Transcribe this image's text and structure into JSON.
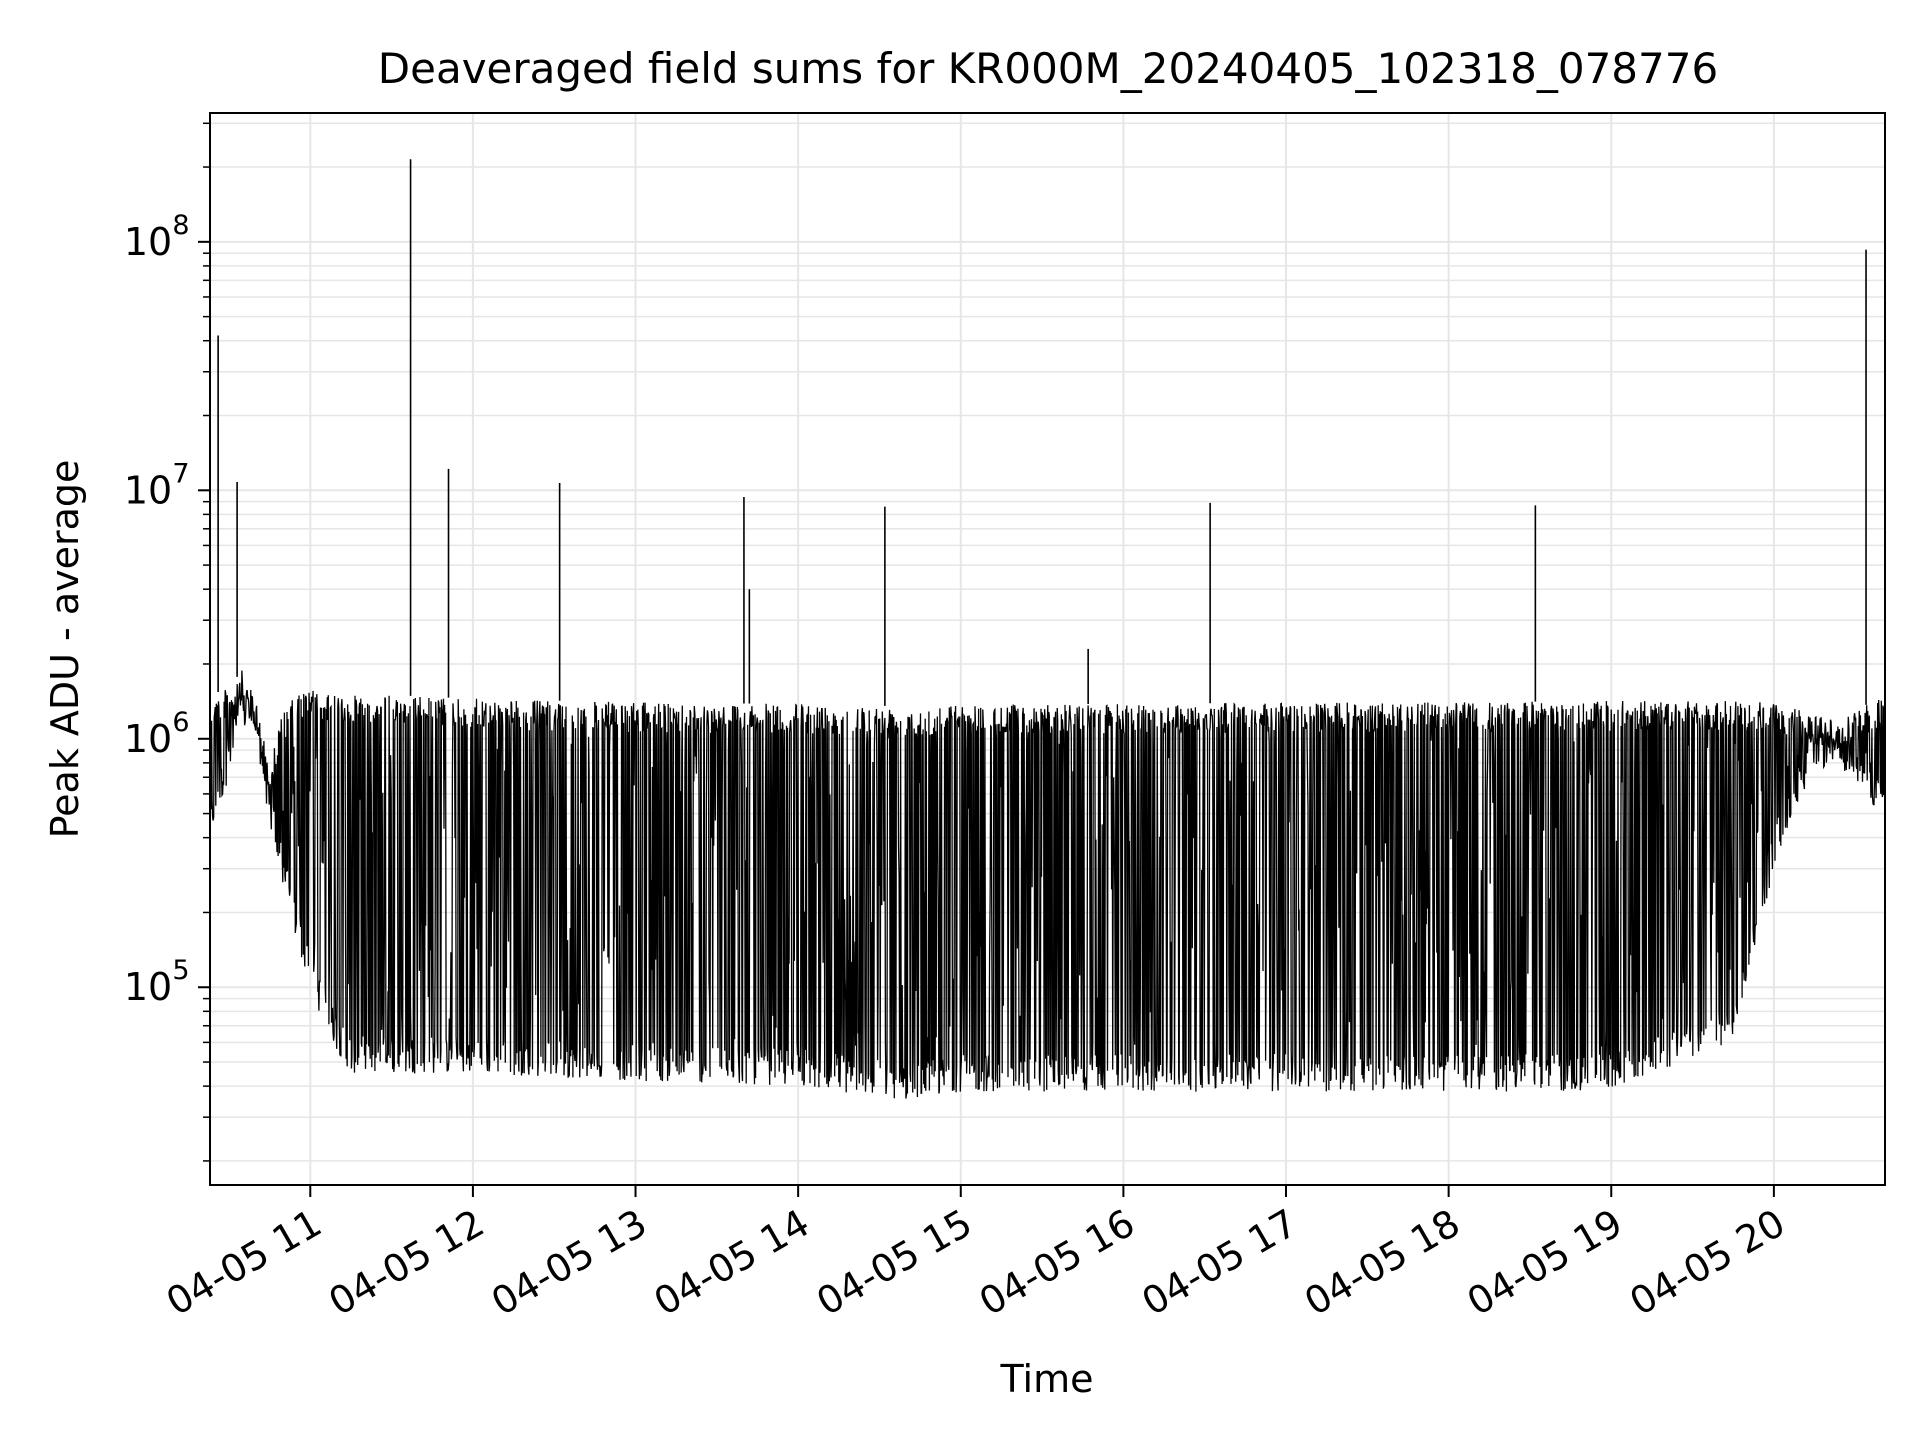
{
  "chart_data": {
    "type": "line",
    "title": "Deaveraged field sums for KR000M_20240405_102318_078776",
    "xlabel": "Time",
    "ylabel": "Peak ADU - average",
    "yscale": "log",
    "ylim": [
      16000,
      330000000
    ],
    "xlim": [
      "2024-04-05 10:23",
      "2024-04-05 20:41"
    ],
    "x_ticks": [
      "04-05 11",
      "04-05 12",
      "04-05 13",
      "04-05 14",
      "04-05 15",
      "04-05 16",
      "04-05 17",
      "04-05 18",
      "04-05 19",
      "04-05 20"
    ],
    "x_tick_times": [
      "2024-04-05 11:00",
      "2024-04-05 12:00",
      "2024-04-05 13:00",
      "2024-04-05 14:00",
      "2024-04-05 15:00",
      "2024-04-05 16:00",
      "2024-04-05 17:00",
      "2024-04-05 18:00",
      "2024-04-05 19:00",
      "2024-04-05 20:00"
    ],
    "y_ticks": [
      {
        "value": 100000,
        "base": "10",
        "exp": "5"
      },
      {
        "value": 1000000,
        "base": "10",
        "exp": "6"
      },
      {
        "value": 10000000,
        "base": "10",
        "exp": "7"
      },
      {
        "value": 100000000,
        "base": "10",
        "exp": "8"
      }
    ],
    "grid": true,
    "line_color": "#000000",
    "grid_color": "#e6e6e6",
    "series": [
      {
        "envelope": {
          "note_units": "minute marks",
          "x": [
            "2024-04-05 10:23",
            "2024-04-05 10:30",
            "2024-04-05 10:35",
            "2024-04-05 10:40",
            "2024-04-05 10:45",
            "2024-04-05 10:50",
            "2024-04-05 10:55",
            "2024-04-05 11:00",
            "2024-04-05 11:05",
            "2024-04-05 11:10",
            "2024-04-05 11:15",
            "2024-04-05 11:30",
            "2024-04-05 12:00",
            "2024-04-05 13:00",
            "2024-04-05 14:00",
            "2024-04-05 14:40",
            "2024-04-05 15:00",
            "2024-04-05 16:00",
            "2024-04-05 17:00",
            "2024-04-05 18:00",
            "2024-04-05 19:00",
            "2024-04-05 19:45",
            "2024-04-05 20:00",
            "2024-04-05 20:10",
            "2024-04-05 20:20",
            "2024-04-05 20:30",
            "2024-04-05 20:41"
          ],
          "high": [
            1500000,
            1600000,
            1900000,
            1400000,
            800000,
            1300000,
            1500000,
            1600000,
            1500000,
            1500000,
            1500000,
            1500000,
            1450000,
            1400000,
            1380000,
            1350000,
            1380000,
            1380000,
            1400000,
            1400000,
            1420000,
            1420000,
            1400000,
            1300000,
            1200000,
            1300000,
            1500000
          ],
          "low": [
            400000,
            700000,
            1100000,
            1000000,
            450000,
            250000,
            150000,
            100000,
            70000,
            55000,
            45000,
            45000,
            45000,
            42000,
            40000,
            35000,
            38000,
            38000,
            38000,
            38000,
            38000,
            60000,
            300000,
            600000,
            800000,
            700000,
            450000
          ]
        },
        "spikes": [
          {
            "x": "2024-04-05 10:26",
            "y": 42000000
          },
          {
            "x": "2024-04-05 10:33",
            "y": 10800000
          },
          {
            "x": "2024-04-05 11:37",
            "y": 215000000
          },
          {
            "x": "2024-04-05 11:51",
            "y": 12200000
          },
          {
            "x": "2024-04-05 12:32",
            "y": 10700000
          },
          {
            "x": "2024-04-05 13:40",
            "y": 9400000
          },
          {
            "x": "2024-04-05 13:42",
            "y": 4000000
          },
          {
            "x": "2024-04-05 14:32",
            "y": 8600000
          },
          {
            "x": "2024-04-05 15:47",
            "y": 2300000
          },
          {
            "x": "2024-04-05 16:32",
            "y": 8900000
          },
          {
            "x": "2024-04-05 18:32",
            "y": 8700000
          },
          {
            "x": "2024-04-05 20:34",
            "y": 93000000
          }
        ]
      }
    ]
  }
}
